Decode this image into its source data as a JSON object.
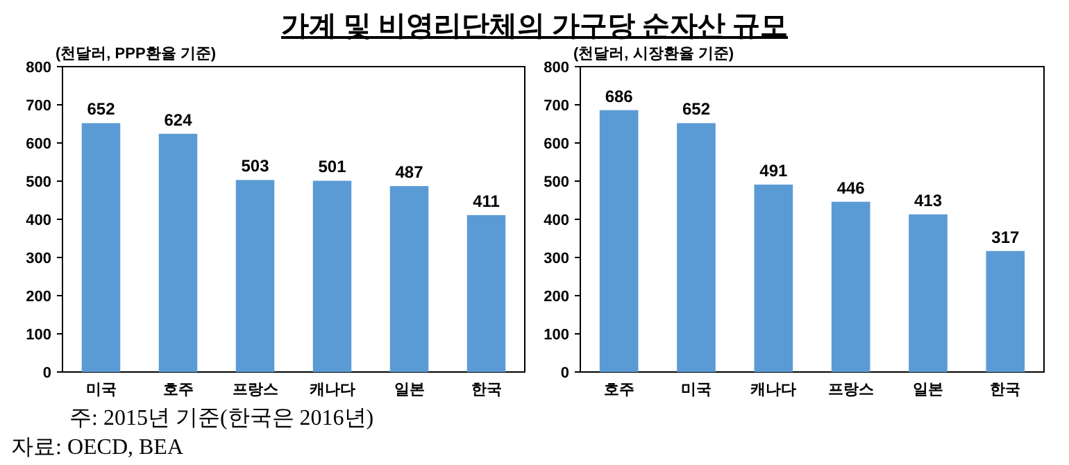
{
  "chart_data": [
    {
      "type": "bar",
      "title": "가계 및 비영리단체의 가구당 순자산 규모",
      "subtitle": "(천달러, PPP환율 기준)",
      "categories": [
        "미국",
        "호주",
        "프랑스",
        "캐나다",
        "일본",
        "한국"
      ],
      "values": [
        652,
        624,
        503,
        501,
        487,
        411
      ],
      "color": "#5b9bd5",
      "ylim": [
        0,
        800
      ],
      "yticks": [
        0,
        100,
        200,
        300,
        400,
        500,
        600,
        700,
        800
      ],
      "data_labels": true,
      "grid": false,
      "annotations": [
        "주: 2015년 기준(한국은 2016년)",
        "자료: OECD, BEA"
      ]
    },
    {
      "type": "bar",
      "subtitle": "(천달러, 시장환율 기준)",
      "categories": [
        "호주",
        "미국",
        "캐나다",
        "프랑스",
        "일본",
        "한국"
      ],
      "values": [
        686,
        652,
        491,
        446,
        413,
        317
      ],
      "color": "#5b9bd5",
      "ylim": [
        0,
        800
      ],
      "yticks": [
        0,
        100,
        200,
        300,
        400,
        500,
        600,
        700,
        800
      ],
      "data_labels": true,
      "grid": false
    }
  ]
}
